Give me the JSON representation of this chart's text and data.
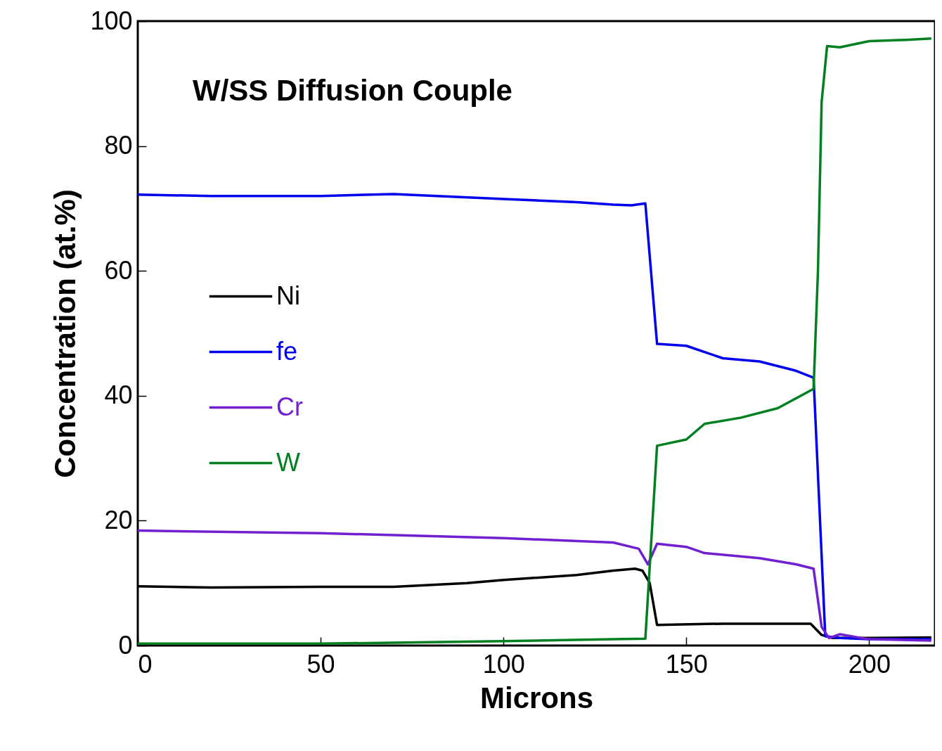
{
  "chart_data": {
    "type": "line",
    "title": "W/SS Diffusion Couple",
    "xlabel": "Microns",
    "ylabel": "Concentration (at.%)",
    "xlim": [
      0,
      218
    ],
    "ylim": [
      0,
      100
    ],
    "xticks": [
      0,
      50,
      100,
      150,
      200
    ],
    "yticks": [
      0,
      20,
      40,
      60,
      80,
      100
    ],
    "grid": false,
    "legend": "left",
    "marker": "none",
    "line_style": "solid",
    "series": [
      {
        "name": "Ni",
        "color": "#000000",
        "x": [
          0,
          20,
          50,
          70,
          90,
          100,
          120,
          130,
          136,
          138,
          140,
          142,
          160,
          184,
          187,
          190,
          200,
          217
        ],
        "values": [
          9.5,
          9.3,
          9.4,
          9.4,
          10,
          10.5,
          11.3,
          12,
          12.3,
          12,
          10,
          3.3,
          3.5,
          3.5,
          1.7,
          1.2,
          1.2,
          1.3
        ]
      },
      {
        "name": "fe",
        "color": "#0000ee",
        "x": [
          0,
          20,
          50,
          70,
          100,
          120,
          130,
          135,
          138.8,
          142,
          150,
          160,
          170,
          180,
          184.8,
          188,
          192,
          200,
          217
        ],
        "values": [
          72.2,
          72,
          72,
          72.3,
          71.5,
          71,
          70.6,
          70.5,
          70.8,
          48.3,
          48,
          46,
          45.5,
          44,
          42.9,
          1.5,
          1.2,
          1,
          1
        ]
      },
      {
        "name": "Cr",
        "color": "#7020d0",
        "x": [
          0,
          50,
          100,
          130,
          137,
          139.5,
          142,
          150,
          155,
          170,
          180,
          184.8,
          187,
          189,
          192,
          200,
          217
        ],
        "values": [
          18.4,
          18,
          17.2,
          16.5,
          15.5,
          13,
          16.3,
          15.8,
          14.8,
          14,
          13,
          12.3,
          3,
          1.2,
          1.8,
          1,
          0.8
        ]
      },
      {
        "name": "W",
        "color": "#008020",
        "x": [
          0,
          50,
          100,
          130,
          138.8,
          142,
          150,
          155,
          165,
          175,
          184.8,
          186,
          187,
          188.5,
          192,
          200,
          210,
          217
        ],
        "values": [
          0.3,
          0.3,
          0.7,
          1,
          1.1,
          32,
          33,
          35.5,
          36.5,
          38,
          41.1,
          60,
          87,
          96,
          95.8,
          96.8,
          97,
          97.2
        ]
      }
    ]
  }
}
